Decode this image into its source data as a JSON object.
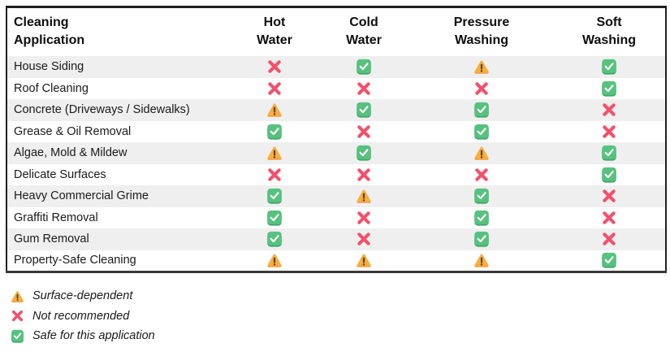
{
  "chart_data": {
    "type": "table",
    "columns": [
      {
        "id": "application",
        "lines": [
          "Cleaning",
          "Application"
        ]
      },
      {
        "id": "hot-water",
        "lines": [
          "Hot",
          "Water"
        ]
      },
      {
        "id": "cold-water",
        "lines": [
          "Cold",
          "Water"
        ]
      },
      {
        "id": "pressure-washing",
        "lines": [
          "Pressure",
          "Washing"
        ]
      },
      {
        "id": "soft-washing",
        "lines": [
          "Soft",
          "Washing"
        ]
      }
    ],
    "rows": [
      {
        "application": "House Siding",
        "values": [
          "not-recommended",
          "safe",
          "surface-dependent",
          "safe"
        ]
      },
      {
        "application": "Roof Cleaning",
        "values": [
          "not-recommended",
          "not-recommended",
          "not-recommended",
          "safe"
        ]
      },
      {
        "application": "Concrete (Driveways / Sidewalks)",
        "values": [
          "surface-dependent",
          "safe",
          "safe",
          "not-recommended"
        ]
      },
      {
        "application": "Grease & Oil Removal",
        "values": [
          "safe",
          "not-recommended",
          "safe",
          "not-recommended"
        ]
      },
      {
        "application": "Algae, Mold & Mildew",
        "values": [
          "surface-dependent",
          "safe",
          "surface-dependent",
          "safe"
        ]
      },
      {
        "application": "Delicate Surfaces",
        "values": [
          "not-recommended",
          "not-recommended",
          "not-recommended",
          "safe"
        ]
      },
      {
        "application": "Heavy Commercial Grime",
        "values": [
          "safe",
          "surface-dependent",
          "safe",
          "not-recommended"
        ]
      },
      {
        "application": "Graffiti Removal",
        "values": [
          "safe",
          "not-recommended",
          "safe",
          "not-recommended"
        ]
      },
      {
        "application": "Gum Removal",
        "values": [
          "safe",
          "not-recommended",
          "safe",
          "not-recommended"
        ]
      },
      {
        "application": "Property-Safe Cleaning",
        "values": [
          "surface-dependent",
          "surface-dependent",
          "surface-dependent",
          "safe"
        ]
      }
    ]
  },
  "legend": {
    "items": [
      {
        "value": "surface-dependent",
        "icon": "warning-icon",
        "label": "Surface-dependent"
      },
      {
        "value": "not-recommended",
        "icon": "cross-icon",
        "label": "Not recommended"
      },
      {
        "value": "safe",
        "icon": "check-icon",
        "label": "Safe for this application"
      }
    ]
  },
  "icons": {
    "safe": {
      "name": "check-icon",
      "glyph": "✓"
    },
    "not-recommended": {
      "name": "cross-icon",
      "glyph": "✕"
    },
    "surface-dependent": {
      "name": "warning-icon",
      "glyph": "⚠"
    }
  },
  "colors": {
    "cross": "#F2516C",
    "check_green": "#57C27F",
    "check_green_dark": "#3DA768",
    "check_mark": "#FFFFFF",
    "warning_orange": "#F9AD3D",
    "warning_orange_dark": "#EE9133",
    "warning_mark": "#5D4A28",
    "row_stripe": "#EFEFEF",
    "table_border": "#1F1F1F",
    "table_border_bottom": "#3A3A3A",
    "text": "#1A1A1A"
  }
}
